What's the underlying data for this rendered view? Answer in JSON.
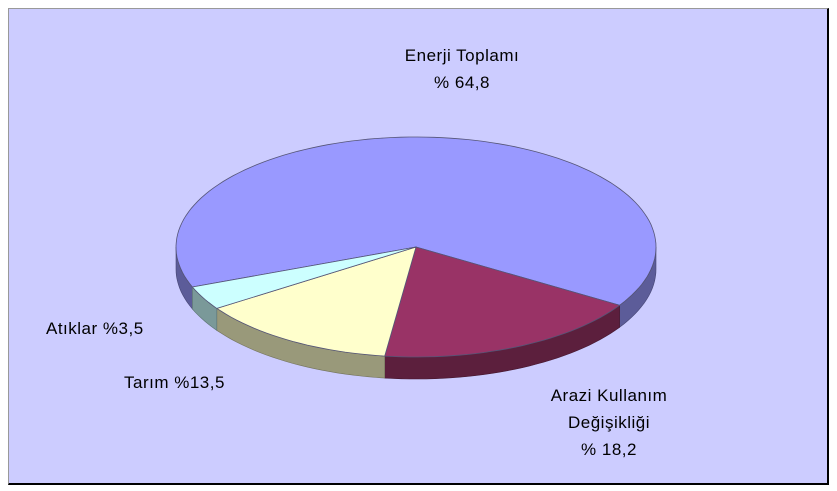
{
  "chart_data": {
    "type": "pie3d",
    "categories": [
      "Enerji Toplamı",
      "Arazi Kullanım Değişikliği",
      "Tarım",
      "Atıklar"
    ],
    "values": [
      64.8,
      18.2,
      13.5,
      3.5
    ],
    "value_labels": [
      "% 64,8",
      "% 18,2",
      "%13,5",
      "%3,5"
    ],
    "colors": [
      "#9999ff",
      "#993366",
      "#ffffcc",
      "#ccffff"
    ]
  }
}
